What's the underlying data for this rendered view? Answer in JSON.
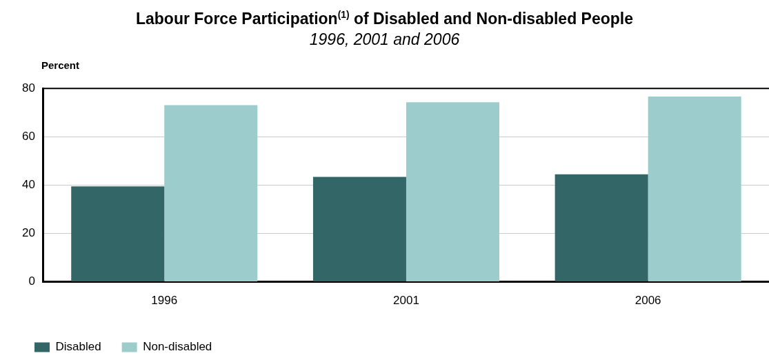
{
  "chart_data": {
    "type": "bar",
    "title": "Labour Force Participation$^{(1)}$ of Disabled and Non-disabled People",
    "subtitle": "1996, 2001 and 2006",
    "ylabel": "Percent",
    "categories": [
      "1996",
      "2001",
      "2006"
    ],
    "series": [
      {
        "name": "Disabled",
        "color": "#336666",
        "values": [
          39.5,
          43.4,
          44.5
        ]
      },
      {
        "name": "Non-disabled",
        "color": "#9ccccc",
        "values": [
          73.1,
          74.3,
          76.6
        ]
      }
    ],
    "ylim": [
      0,
      80
    ],
    "yticks": [
      0,
      20,
      40,
      60,
      80
    ],
    "grid": "y",
    "legend": "bottom left"
  }
}
